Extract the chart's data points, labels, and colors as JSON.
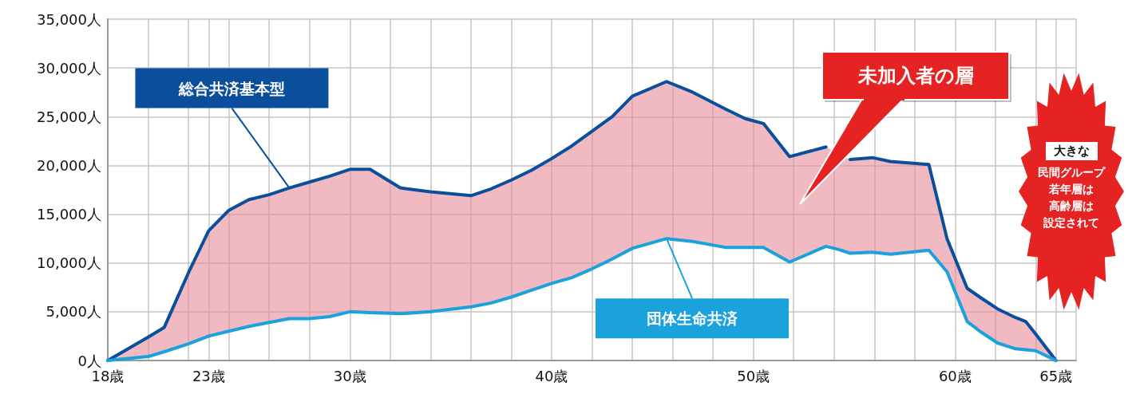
{
  "chart_data": {
    "type": "line",
    "x": [
      18,
      20,
      20.8,
      22,
      23,
      24,
      25,
      26,
      27,
      28,
      29,
      30,
      31,
      32.5,
      34,
      36,
      37,
      38,
      39,
      40,
      41,
      42,
      43,
      44,
      45.7,
      47,
      48.6,
      49.6,
      50.5,
      51.8,
      53.6,
      54.2,
      54.8,
      55.9,
      56.8,
      58.7,
      59.6,
      60.6,
      61.3,
      62.1,
      63,
      63.5,
      64,
      65
    ],
    "series": [
      {
        "name": "総合共済基本型",
        "color": "#0b4f9c",
        "values": [
          0,
          2400,
          3400,
          9000,
          13300,
          15400,
          16500,
          17000,
          17700,
          18300,
          18900,
          19600,
          19600,
          17700,
          17300,
          16900,
          17600,
          18500,
          19500,
          20700,
          22000,
          23500,
          25000,
          27100,
          28600,
          27500,
          25800,
          24800,
          24300,
          20900,
          21900,
          null,
          20600,
          20800,
          20400,
          20100,
          12500,
          7400,
          6400,
          5300,
          4400,
          4000,
          2700,
          0
        ],
        "lower": [
          0,
          400,
          900,
          1700,
          2500,
          3000,
          3500,
          3900,
          4300,
          4300,
          4500,
          5000,
          4900,
          4800,
          5000,
          5500,
          5900,
          6500,
          7200,
          7900,
          8500,
          9400,
          10400,
          11500,
          12500,
          12200,
          11600,
          11600,
          11600,
          10100,
          11700,
          null,
          11000,
          11100,
          10900,
          11300,
          9100,
          4000,
          2900,
          1800,
          1200,
          1100,
          1000,
          0
        ],
        "upper": [
          0,
          2400,
          3400,
          9000,
          13300,
          15400,
          16500,
          17000,
          17700,
          18300,
          18900,
          19600,
          19600,
          17700,
          17300,
          16900,
          17600,
          18500,
          19500,
          20700,
          22000,
          23500,
          25000,
          27100,
          28600,
          27500,
          25800,
          24800,
          24300,
          20900,
          21900,
          null,
          20600,
          20800,
          20400,
          20100,
          12500,
          7400,
          6400,
          5300,
          4400,
          4000,
          2700,
          0
        ]
      },
      {
        "name": "団体生命共済",
        "color": "#1ba1dc",
        "values": [
          0,
          400,
          900,
          1700,
          2500,
          3000,
          3500,
          3900,
          4300,
          4300,
          4500,
          5000,
          4900,
          4800,
          5000,
          5500,
          5900,
          6500,
          7200,
          7900,
          8500,
          9400,
          10400,
          11500,
          12500,
          12200,
          11600,
          11600,
          11600,
          10100,
          11700,
          11400,
          11000,
          11100,
          10900,
          11300,
          9100,
          4000,
          2900,
          1800,
          1200,
          1100,
          1000,
          0
        ]
      }
    ],
    "xlim": [
      18,
      66
    ],
    "xticks": [
      {
        "value": 18,
        "label": "18歳"
      },
      {
        "value": 20,
        "label": null
      },
      {
        "value": 22,
        "label": null
      },
      {
        "value": 23,
        "label": "23歳"
      },
      {
        "value": 24,
        "label": null
      },
      {
        "value": 26,
        "label": null
      },
      {
        "value": 28,
        "label": null
      },
      {
        "value": 30,
        "label": "30歳"
      },
      {
        "value": 32,
        "label": null
      },
      {
        "value": 34,
        "label": null
      },
      {
        "value": 36,
        "label": null
      },
      {
        "value": 38,
        "label": null
      },
      {
        "value": 40,
        "label": "40歳"
      },
      {
        "value": 42,
        "label": null
      },
      {
        "value": 44,
        "label": null
      },
      {
        "value": 46,
        "label": null
      },
      {
        "value": 48,
        "label": null
      },
      {
        "value": 50,
        "label": "50歳"
      },
      {
        "value": 52,
        "label": null
      },
      {
        "value": 54,
        "label": null
      },
      {
        "value": 56,
        "label": null
      },
      {
        "value": 58,
        "label": null
      },
      {
        "value": 60,
        "label": "60歳"
      },
      {
        "value": 62,
        "label": null
      },
      {
        "value": 64,
        "label": null
      },
      {
        "value": 65,
        "label": "65歳"
      },
      {
        "value": 66,
        "label": null
      }
    ],
    "ylim": [
      0,
      35000
    ],
    "yticks": [
      {
        "value": 0,
        "label": "0人"
      },
      {
        "value": 5000,
        "label": "5,000人"
      },
      {
        "value": 10000,
        "label": "10,000人"
      },
      {
        "value": 15000,
        "label": "15,000人"
      },
      {
        "value": 20000,
        "label": "20,000人"
      },
      {
        "value": 25000,
        "label": "25,000人"
      },
      {
        "value": 30000,
        "label": "30,000人"
      },
      {
        "value": 35000,
        "label": "35,000人"
      }
    ],
    "grid": true,
    "marker": "none",
    "line_style": "solid",
    "annotations": [
      "未加入者の層",
      "大きな",
      "民間グループ",
      "若年層は",
      "高齢層は",
      "設定されて"
    ]
  }
}
